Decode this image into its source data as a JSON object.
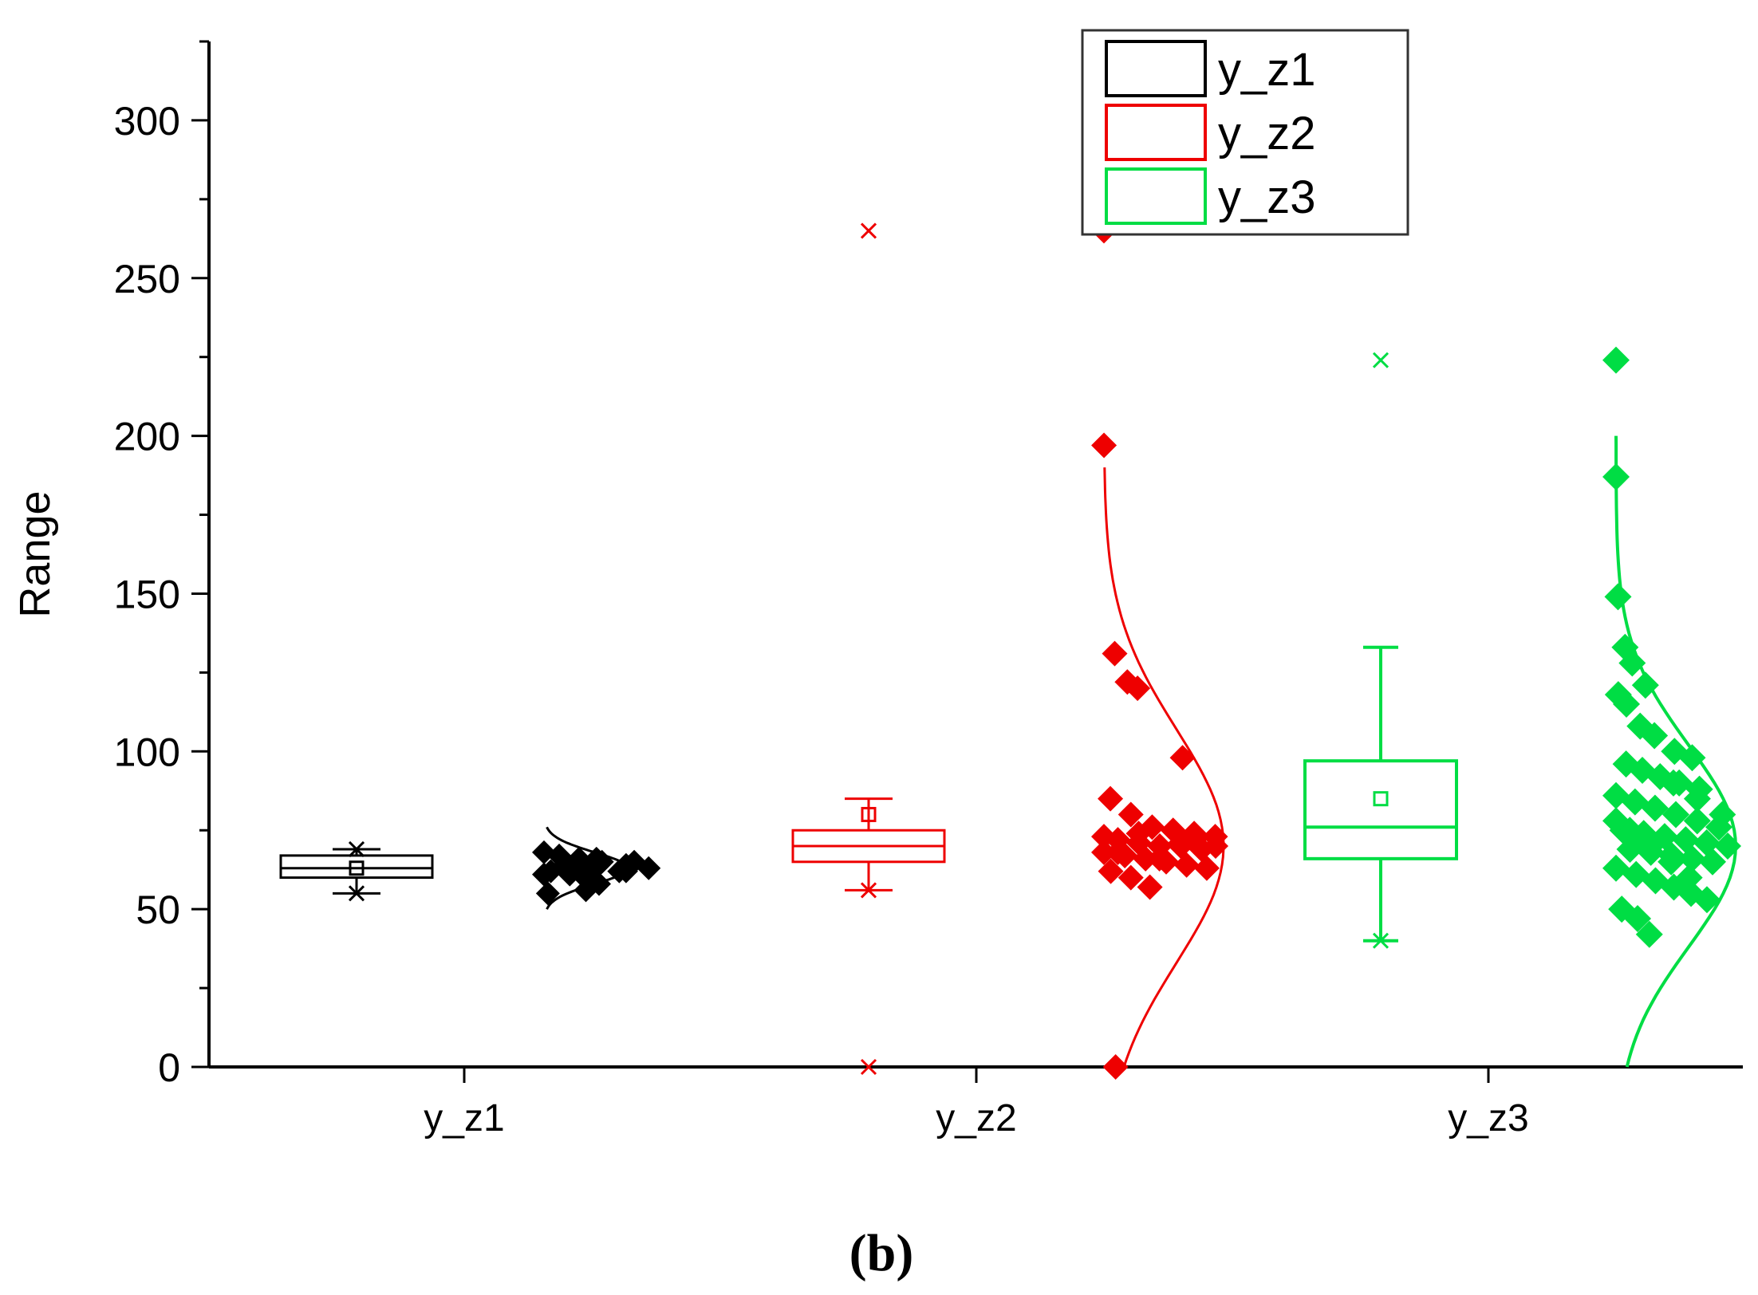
{
  "chart_data": {
    "type": "box",
    "title": "",
    "xlabel": "",
    "ylabel": "Range",
    "ylim": [
      0,
      325
    ],
    "yticks": [
      0,
      50,
      100,
      150,
      200,
      250,
      300
    ],
    "categories": [
      "y_z1",
      "y_z2",
      "y_z3"
    ],
    "legend": {
      "position": "top-right",
      "entries": [
        "y_z1",
        "y_z2",
        "y_z3"
      ]
    },
    "caption": "(b)",
    "series": [
      {
        "name": "y_z1",
        "color": "#000000",
        "box": {
          "whisker_low": 55,
          "q1": 60,
          "median": 63,
          "q3": 67,
          "whisker_high": 69,
          "mean": 63
        },
        "outliers": [],
        "points": [
          68,
          67,
          66,
          65,
          64,
          63,
          62,
          61,
          60,
          59,
          58,
          56,
          55,
          63,
          64,
          62,
          65,
          61,
          64,
          63,
          66,
          62
        ],
        "curve": {
          "mean": 63,
          "sd": 5,
          "ymin": 50,
          "ymax": 76
        }
      },
      {
        "name": "y_z2",
        "color": "#ee0000",
        "box": {
          "whisker_low": 56,
          "q1": 65,
          "median": 70,
          "q3": 75,
          "whisker_high": 85,
          "mean": 80
        },
        "outliers": [
          265,
          0
        ],
        "points": [
          265,
          197,
          131,
          122,
          120,
          98,
          85,
          80,
          76,
          75,
          74,
          73,
          72,
          71,
          70,
          70,
          69,
          68,
          67,
          66,
          65,
          64,
          63,
          62,
          60,
          57,
          0,
          72,
          70,
          68,
          74,
          66,
          71,
          69,
          73,
          67
        ],
        "curve": {
          "mean": 70,
          "sd": 37,
          "ymin": 0,
          "ymax": 190
        }
      },
      {
        "name": "y_z3",
        "color": "#00dd44",
        "box": {
          "whisker_low": 40,
          "q1": 66,
          "median": 76,
          "q3": 97,
          "whisker_high": 133,
          "mean": 85
        },
        "outliers": [
          224
        ],
        "points": [
          224,
          187,
          149,
          133,
          128,
          121,
          118,
          115,
          108,
          105,
          100,
          98,
          96,
          94,
          92,
          90,
          88,
          86,
          84,
          82,
          80,
          78,
          76,
          75,
          74,
          73,
          72,
          71,
          70,
          69,
          68,
          67,
          66,
          65,
          63,
          61,
          59,
          57,
          55,
          53,
          50,
          47,
          42,
          90,
          85,
          80,
          75,
          70,
          65,
          60,
          88,
          78,
          72
        ],
        "curve": {
          "mean": 70,
          "sd": 32,
          "ymin": 0,
          "ymax": 200
        }
      }
    ]
  }
}
